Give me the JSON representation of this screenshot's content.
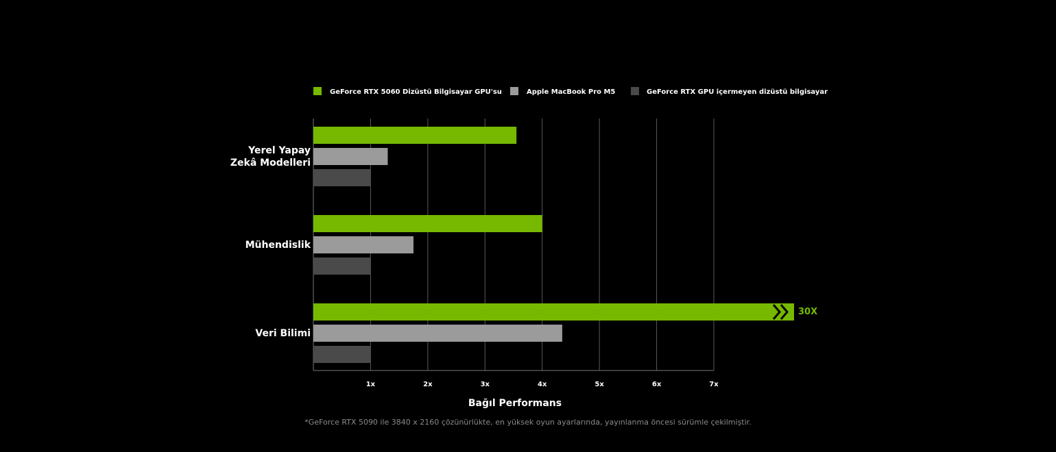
{
  "chart_data": {
    "type": "bar",
    "orientation": "horizontal",
    "categories": [
      "Yerel Yapay Zekâ Modelleri",
      "Mühendislik",
      "Veri Bilimi"
    ],
    "series": [
      {
        "name": "GeForce RTX 5060 Dizüstü Bilgisayar GPU'su",
        "color": "#76b900",
        "values": [
          3.55,
          4.0,
          30
        ],
        "value_labels": [
          null,
          null,
          "30X"
        ]
      },
      {
        "name": "Apple MacBook Pro M5",
        "color": "#9b9b9b",
        "values": [
          1.3,
          1.75,
          4.35
        ]
      },
      {
        "name": "GeForce RTX GPU içermeyen dizüstü bilgisayar",
        "color": "#4a4a4a",
        "values": [
          1,
          1,
          1
        ]
      }
    ],
    "xlim": [
      0,
      7
    ],
    "xticks": [
      {
        "value": 1,
        "label": "1x"
      },
      {
        "value": 2,
        "label": "2x"
      },
      {
        "value": 3,
        "label": "3x"
      },
      {
        "value": 4,
        "label": "4x"
      },
      {
        "value": 5,
        "label": "5x"
      },
      {
        "value": 6,
        "label": "6x"
      },
      {
        "value": 7,
        "label": "7x"
      }
    ],
    "xlabel": "Bağıl Performans",
    "footnote": "*GeForce RTX 5090 ile 3840 x 2160 çözünürlükte, en yüksek oyun ayarlarında, yayınlanma öncesi sürümle çekilmiştir.",
    "grid": true,
    "legend": "top"
  }
}
